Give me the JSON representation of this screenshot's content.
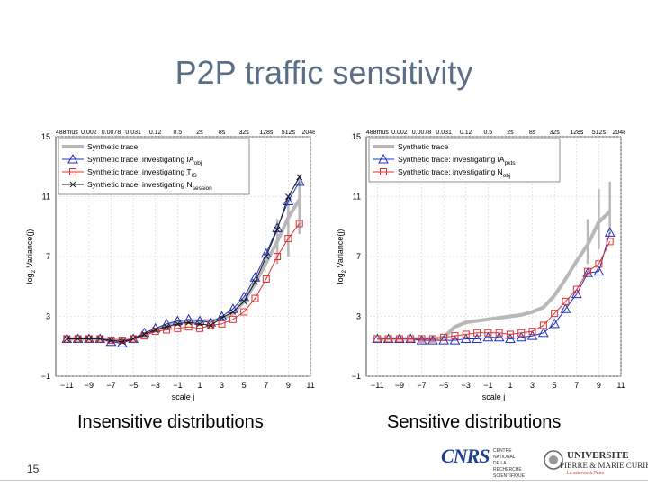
{
  "slide": {
    "title": "P2P traffic sensitivity",
    "page_number": "15",
    "caption_left": "Insensitive distributions",
    "caption_right": "Sensitive distributions",
    "colors": {
      "title": "#5a6e86",
      "synthetic": "#b8b8b8",
      "blue": "#1f2fbf",
      "red": "#e03030",
      "black": "#1a1a1a"
    }
  },
  "logos": {
    "cnrs": {
      "mark": "CNRS",
      "text_lines": [
        "CENTRE NATIONAL",
        "DE LA RECHERCHE",
        "SCIENTIFIQUE"
      ]
    },
    "upmc": {
      "line1": "UNIVERSITE",
      "line2": "PIERRE & MARIE CURIE",
      "tagline": "La science à Paris"
    }
  },
  "chart_data": [
    {
      "type": "line",
      "title": "",
      "xlabel": "scale j",
      "ylabel": "log2 Variance(j)",
      "ylabel_base": "log",
      "ylabel_sub": "2",
      "ylabel_rest": " Variance(j)",
      "xlim": [
        -12,
        11
      ],
      "ylim": [
        -1,
        15
      ],
      "xticks": [
        -11,
        -9,
        -7,
        -5,
        -3,
        -1,
        1,
        3,
        5,
        7,
        9,
        11
      ],
      "yticks": [
        -1,
        3,
        7,
        11,
        15
      ],
      "top_ticks": [
        {
          "j": -11,
          "label": "488mus"
        },
        {
          "j": -9,
          "label": "0.002"
        },
        {
          "j": -7,
          "label": "0.0078"
        },
        {
          "j": -5,
          "label": "0.031"
        },
        {
          "j": -3,
          "label": "0.12"
        },
        {
          "j": -1,
          "label": "0.5"
        },
        {
          "j": 1,
          "label": "2s"
        },
        {
          "j": 3,
          "label": "8s"
        },
        {
          "j": 5,
          "label": "32s"
        },
        {
          "j": 7,
          "label": "128s"
        },
        {
          "j": 9,
          "label": "512s"
        },
        {
          "j": 11,
          "label": "2048s"
        }
      ],
      "legend_location": "top-left",
      "x": [
        -11,
        -10,
        -9,
        -8,
        -7,
        -6,
        -5,
        -4,
        -3,
        -2,
        -1,
        0,
        1,
        2,
        3,
        4,
        5,
        6,
        7,
        8,
        9,
        10
      ],
      "series": [
        {
          "name": "Synthetic trace",
          "label_main": "Synthetic trace",
          "label_sub": "",
          "style": "gray",
          "marker": "none",
          "values": [
            1.5,
            1.5,
            1.5,
            1.5,
            1.4,
            1.4,
            1.5,
            1.8,
            2.1,
            2.4,
            2.6,
            2.7,
            2.7,
            2.7,
            2.8,
            3.2,
            4.0,
            5.2,
            6.6,
            8.0,
            9.6,
            10.8
          ],
          "error_bars": [
            {
              "x": 8,
              "low": 6.5,
              "high": 9.5
            },
            {
              "x": 9,
              "low": 7.0,
              "high": 11.0
            },
            {
              "x": 10,
              "low": 8.5,
              "high": 12.5
            }
          ]
        },
        {
          "name": "Synthetic trace: investigating IAobj",
          "label_main": "Synthetic trace: investigating IA",
          "label_sub": "obj",
          "style": "blue",
          "marker": "triangle",
          "values": [
            1.5,
            1.5,
            1.5,
            1.5,
            1.3,
            1.2,
            1.5,
            1.9,
            2.2,
            2.5,
            2.7,
            2.8,
            2.7,
            2.6,
            3.0,
            3.5,
            4.3,
            5.6,
            7.2,
            8.9,
            10.7,
            12.0
          ]
        },
        {
          "name": "Synthetic trace: investigating TIS",
          "label_main": "Synthetic trace: investigating T",
          "label_sub": "IS",
          "style": "red",
          "marker": "square",
          "values": [
            1.5,
            1.5,
            1.5,
            1.5,
            1.4,
            1.4,
            1.5,
            1.7,
            2.0,
            2.1,
            2.2,
            2.3,
            2.2,
            2.4,
            2.5,
            2.8,
            3.3,
            4.2,
            5.5,
            7.0,
            8.2,
            9.2
          ]
        },
        {
          "name": "Synthetic trace: investigating Nsession",
          "label_main": "Synthetic trace: investigating N",
          "label_sub": "session",
          "style": "black",
          "marker": "x",
          "values": [
            1.5,
            1.5,
            1.5,
            1.5,
            1.4,
            1.3,
            1.5,
            1.8,
            2.1,
            2.3,
            2.5,
            2.6,
            2.5,
            2.4,
            2.9,
            3.3,
            4.0,
            5.3,
            7.0,
            8.8,
            11.0,
            12.3
          ]
        }
      ]
    },
    {
      "type": "line",
      "title": "",
      "xlabel": "scale j",
      "ylabel": "log2 Variance(j)",
      "ylabel_base": "log",
      "ylabel_sub": "2",
      "ylabel_rest": " Variance(j)",
      "xlim": [
        -12,
        11
      ],
      "ylim": [
        -1,
        15
      ],
      "xticks": [
        -11,
        -9,
        -7,
        -5,
        -3,
        -1,
        1,
        3,
        5,
        7,
        9,
        11
      ],
      "yticks": [
        -1,
        3,
        7,
        11,
        15
      ],
      "top_ticks": [
        {
          "j": -11,
          "label": "488mus"
        },
        {
          "j": -9,
          "label": "0.002"
        },
        {
          "j": -7,
          "label": "0.0078"
        },
        {
          "j": -5,
          "label": "0.031"
        },
        {
          "j": -3,
          "label": "0.12"
        },
        {
          "j": -1,
          "label": "0.5"
        },
        {
          "j": 1,
          "label": "2s"
        },
        {
          "j": 3,
          "label": "8s"
        },
        {
          "j": 5,
          "label": "32s"
        },
        {
          "j": 7,
          "label": "128s"
        },
        {
          "j": 9,
          "label": "512s"
        },
        {
          "j": 11,
          "label": "2048s"
        }
      ],
      "legend_location": "top-left",
      "x": [
        -11,
        -10,
        -9,
        -8,
        -7,
        -6,
        -5,
        -4,
        -3,
        -2,
        -1,
        0,
        1,
        2,
        3,
        4,
        5,
        6,
        7,
        8,
        9,
        10
      ],
      "series": [
        {
          "name": "Synthetic trace",
          "label_main": "Synthetic trace",
          "label_sub": "",
          "style": "gray",
          "marker": "none",
          "values": [
            1.5,
            1.5,
            1.5,
            1.5,
            1.5,
            1.5,
            1.6,
            2.3,
            2.6,
            2.7,
            2.8,
            2.9,
            3.0,
            3.1,
            3.3,
            3.6,
            4.4,
            5.5,
            6.7,
            7.8,
            9.3,
            10.0
          ],
          "error_bars": [
            {
              "x": 8,
              "low": 6.5,
              "high": 9.5
            },
            {
              "x": 9,
              "low": 7.5,
              "high": 11.5
            },
            {
              "x": 10,
              "low": 8.5,
              "high": 12.0
            }
          ]
        },
        {
          "name": "Synthetic trace: investigating IApkts",
          "label_main": "Synthetic trace: investigating IA",
          "label_sub": "pkts",
          "style": "blue",
          "marker": "triangle",
          "values": [
            1.5,
            1.5,
            1.5,
            1.5,
            1.4,
            1.4,
            1.4,
            1.4,
            1.5,
            1.5,
            1.6,
            1.6,
            1.5,
            1.6,
            1.7,
            1.9,
            2.5,
            3.5,
            4.5,
            5.9,
            6.0,
            8.6
          ]
        },
        {
          "name": "Synthetic trace: investigating Nobj",
          "label_main": "Synthetic trace: investigating N",
          "label_sub": "obj",
          "style": "red",
          "marker": "square",
          "values": [
            1.5,
            1.5,
            1.5,
            1.5,
            1.5,
            1.5,
            1.6,
            1.7,
            1.8,
            1.9,
            1.9,
            1.9,
            1.8,
            1.9,
            2.0,
            2.4,
            3.2,
            4.0,
            4.8,
            6.0,
            6.5,
            8.0
          ]
        }
      ]
    }
  ]
}
